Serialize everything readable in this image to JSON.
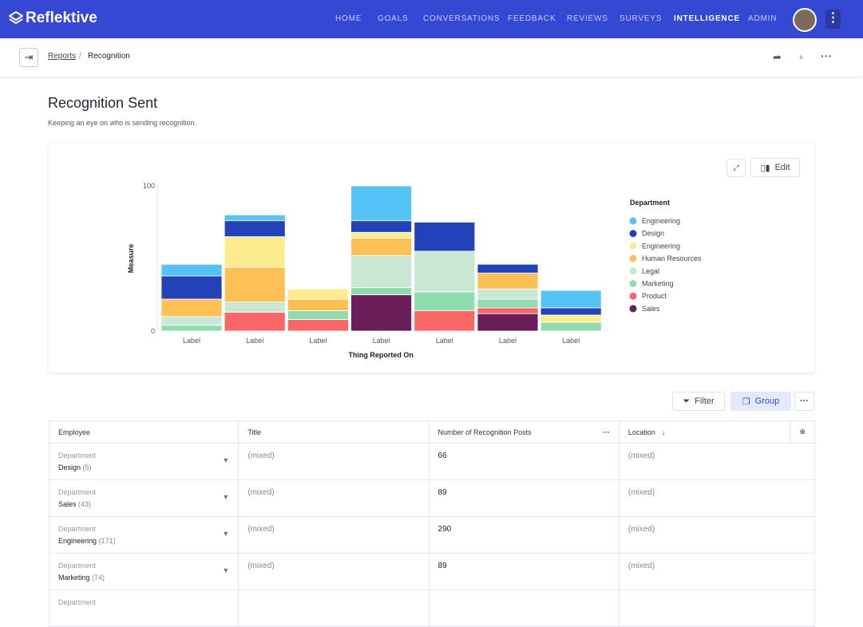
{
  "brand": "Reflektive",
  "nav": [
    "HOME",
    "GOALS",
    "CONVERSATIONS",
    "FEEDBACK",
    "REVIEWS",
    "SURVEYS",
    "INTELLIGENCE",
    "ADMIN"
  ],
  "breadcrumb": [
    "Reports",
    "Recognition"
  ],
  "page": {
    "title": "Recognition Sent",
    "subtitle": "Keeping an eye on who is sending recognition."
  },
  "buttons": {
    "edit": "Edit",
    "filter": "Filter",
    "group": "Group"
  },
  "chart_data": {
    "type": "stacked_bar",
    "categories": [
      "Label",
      "Label",
      "Label",
      "Label",
      "Label",
      "Label",
      "Label"
    ],
    "x_label": "Thing Reported On",
    "y_label": "Measure",
    "legend_title": "Department",
    "ylim": [
      0,
      100
    ],
    "yticks": [
      0,
      100
    ],
    "series": [
      {
        "name": "Sales",
        "color": "#6b1f5a",
        "values": [
          0,
          0,
          0,
          25,
          0,
          12,
          0
        ]
      },
      {
        "name": "Product",
        "color": "#fb6767",
        "values": [
          0,
          13,
          8,
          0,
          14,
          4,
          0
        ]
      },
      {
        "name": "Marketing",
        "color": "#8edcb0",
        "values": [
          4,
          0,
          6,
          5,
          13,
          6,
          6
        ]
      },
      {
        "name": "Legal",
        "color": "#c9e8d3",
        "values": [
          6,
          7,
          0,
          22,
          28,
          7,
          0
        ]
      },
      {
        "name": "Human Resources",
        "color": "#fdc054",
        "values": [
          12,
          24,
          8,
          12,
          0,
          11,
          0
        ]
      },
      {
        "name": "Engineering",
        "color": "#fdec8f",
        "values": [
          0,
          21,
          7,
          4,
          0,
          0,
          5
        ]
      },
      {
        "name": "Design",
        "color": "#2142b8",
        "values": [
          16,
          11,
          0,
          8,
          20,
          6,
          5
        ]
      },
      {
        "name": "Engineering",
        "color": "#55c3f5",
        "values": [
          8,
          4,
          0,
          24,
          0,
          0,
          12
        ]
      }
    ],
    "legend_order": [
      7,
      6,
      5,
      4,
      3,
      2,
      1,
      0
    ]
  },
  "table": {
    "columns": [
      "Employee",
      "Title",
      "Number of Recognition Posts",
      "Location"
    ],
    "rows": [
      [
        "Department",
        "Design",
        "(5)",
        "(mixed)",
        66,
        "(mixed)"
      ],
      [
        "Department",
        "Sales",
        "(43)",
        "(mixed)",
        89,
        "(mixed)"
      ],
      [
        "Department",
        "Engineering",
        "(171)",
        "(mixed)",
        290,
        "(mixed)"
      ],
      [
        "Department",
        "Marketing",
        "(74)",
        "(mixed)",
        89,
        "(mixed)"
      ]
    ],
    "partial_row": "Department"
  }
}
